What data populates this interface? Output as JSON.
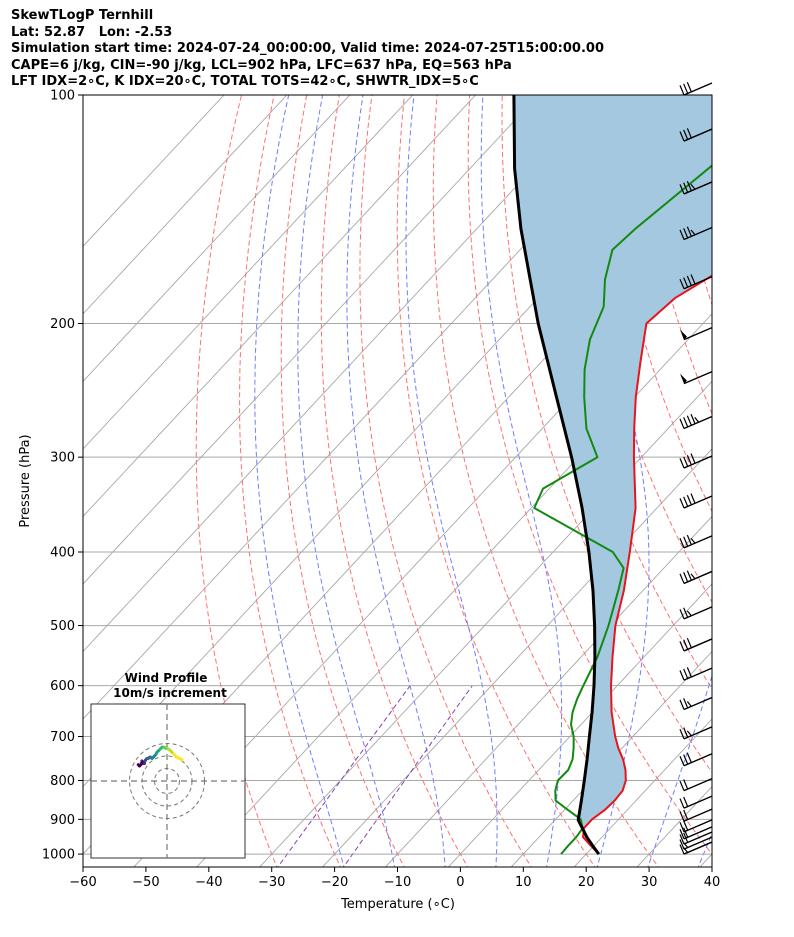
{
  "header": {
    "line1": "SkewTLogP Ternhill",
    "line2": "Lat: 52.87   Lon: -2.53",
    "line3": "Simulation start time: 2024-07-24_00:00:00, Valid time: 2024-07-25T15:00:00.00",
    "line4": "CAPE=6 j/kg, CIN=-90 j/kg, LCL=902 hPa, LFC=637 hPa, EQ=563 hPa",
    "line5": "LFT IDX=2∘C, K IDX=20∘C, TOTAL TOTS=42∘C, SHWTR_IDX=5∘C"
  },
  "colors": {
    "temperature": "#e8141b",
    "dewpoint": "#128a12",
    "parcel": "#000000",
    "cape_fill": "#a4c8e0",
    "dry_adiabat": "#ff6f6f",
    "moist_adiabat": "#6f7cff",
    "mixing_ratio": "#8a3fb0",
    "isotherm": "#a8a8a8",
    "barb": "#000000"
  },
  "chart_data": [
    {
      "type": "line",
      "subtype": "skew-t log-p",
      "xlabel": "Temperature (∘C)",
      "ylabel": "Pressure (hPa)",
      "xlim": [
        -60,
        40
      ],
      "ylim": [
        1040,
        100
      ],
      "y_scale": "log",
      "grid": true,
      "x_ticks": [
        -60,
        -50,
        -40,
        -30,
        -20,
        -10,
        0,
        10,
        20,
        30,
        40
      ],
      "x_tick_labels": [
        "−60",
        "−50",
        "−40",
        "−30",
        "−20",
        "−10",
        "0",
        "10",
        "20",
        "30",
        "40"
      ],
      "y_ticks": [
        100,
        200,
        300,
        400,
        500,
        600,
        700,
        800,
        900,
        1000
      ],
      "y_tick_labels": [
        "100",
        "200",
        "300",
        "400",
        "500",
        "600",
        "700",
        "800",
        "900",
        "1000"
      ],
      "series": [
        {
          "key": "temperature",
          "pressure": [
            1000,
            975,
            950,
            925,
            900,
            875,
            850,
            825,
            800,
            775,
            750,
            725,
            700,
            650,
            600,
            550,
            500,
            450,
            400,
            350,
            300,
            275,
            250,
            225,
            200,
            185,
            170,
            150,
            125,
            110,
            100
          ],
          "values": [
            22,
            19.5,
            17,
            15.8,
            15.8,
            16.4,
            16.6,
            16.4,
            15.4,
            13.8,
            11.8,
            9.4,
            7.2,
            3,
            -1,
            -5,
            -9.2,
            -13,
            -17.8,
            -23.4,
            -31.2,
            -35.4,
            -39.8,
            -44.2,
            -49,
            -48.2,
            -45,
            -45.2,
            -43.6,
            -39.8,
            -36.5
          ]
        },
        {
          "key": "dewpoint",
          "pressure": [
            1000,
            975,
            950,
            925,
            900,
            875,
            850,
            825,
            800,
            775,
            750,
            725,
            700,
            675,
            650,
            625,
            600,
            550,
            500,
            450,
            420,
            400,
            350,
            330,
            300,
            275,
            250,
            230,
            210,
            190,
            175,
            160,
            150,
            100
          ],
          "values": [
            16,
            15.9,
            15.9,
            15.6,
            14,
            10.6,
            7.2,
            5.7,
            4.6,
            4.7,
            3.8,
            2.3,
            0.6,
            -1.6,
            -3.2,
            -4.4,
            -5.4,
            -7.4,
            -10.3,
            -13.9,
            -16.4,
            -20.5,
            -39.5,
            -41,
            -37,
            -43,
            -48,
            -52,
            -55.6,
            -58.3,
            -62.1,
            -65.3,
            -64.8,
            -58.8
          ]
        },
        {
          "key": "parcel",
          "pressure": [
            1000,
            975,
            950,
            925,
            902,
            850,
            800,
            750,
            700,
            650,
            600,
            550,
            500,
            450,
            400,
            350,
            300,
            250,
            200,
            150,
            125,
            100
          ],
          "values": [
            22,
            19.8,
            17.6,
            15.6,
            13.7,
            11.3,
            8.8,
            6.1,
            3.1,
            -0.1,
            -3.7,
            -7.8,
            -12.5,
            -17.9,
            -24.3,
            -31.9,
            -41.1,
            -52.4,
            -66.2,
            -83,
            -92.9,
            -103.9
          ]
        }
      ],
      "wind_barbs": {
        "pressure": [
          1000,
          985,
          970,
          955,
          935,
          905,
          870,
          825,
          765,
          705,
          645,
          590,
          540,
          490,
          440,
          395,
          350,
          310,
          275,
          240,
          210,
          180,
          155,
          135,
          115,
          100
        ],
        "speed_kt": [
          15,
          15,
          20,
          20,
          20,
          20,
          20,
          20,
          30,
          25,
          25,
          30,
          30,
          25,
          35,
          35,
          40,
          40,
          45,
          50,
          50,
          40,
          35,
          35,
          30,
          30
        ]
      },
      "inset": {
        "title": "Wind Profile",
        "subtitle": "10m/s increment",
        "type": "hodograph",
        "rings_ms": [
          10,
          20,
          30
        ],
        "u": [
          12,
          10,
          8,
          6,
          4,
          2,
          0,
          -1,
          -2,
          -3,
          -4,
          -5,
          -6,
          -7,
          -8,
          -9,
          -10,
          -11,
          -12,
          -13,
          -14,
          -15,
          -16,
          -17,
          -18,
          -18,
          -19,
          -19,
          -20,
          -20,
          -21,
          -22,
          -23
        ],
        "v": [
          17,
          18,
          19,
          21,
          23,
          25,
          26,
          26,
          27,
          27,
          27,
          26,
          25,
          24,
          23,
          21,
          20,
          19,
          18,
          19,
          19,
          18,
          18,
          17,
          15,
          14,
          14,
          15,
          16,
          15,
          13,
          12,
          13
        ]
      }
    }
  ]
}
